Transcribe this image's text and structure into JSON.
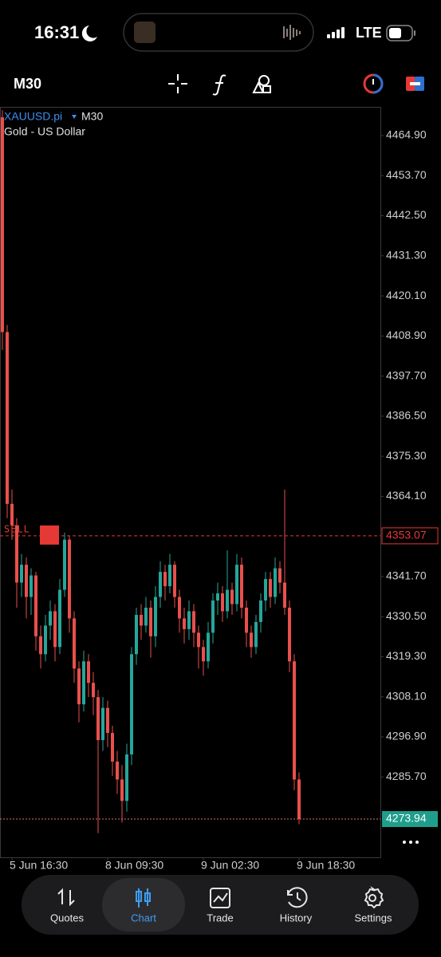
{
  "status_bar": {
    "time": "16:31",
    "network": "LTE"
  },
  "toolbar": {
    "timeframe": "M30"
  },
  "chart_data": {
    "type": "candlestick",
    "symbol": "XAUUSD.pi",
    "timeframe": "M30",
    "description": "Gold - US Dollar",
    "x": [
      null,
      null,
      "5 Jun 16:30",
      null,
      null,
      null,
      null,
      null,
      null,
      null,
      null,
      null,
      null,
      null,
      null,
      null,
      null,
      null,
      null,
      null,
      null,
      null,
      "8 Jun 09:30",
      null,
      null,
      null,
      null,
      null,
      null,
      null,
      null,
      null,
      null,
      null,
      null,
      null,
      null,
      null,
      null,
      null,
      null,
      null,
      "9 Jun 02:30",
      null,
      null,
      null,
      null,
      null,
      null,
      null,
      null,
      null,
      null,
      null,
      null,
      null,
      null,
      null,
      null,
      null,
      null,
      null,
      "9 Jun 18:30"
    ],
    "open": [
      4470,
      4410,
      4362,
      4356,
      4340,
      4345,
      4336,
      4342,
      4325,
      4320,
      4328,
      4332,
      4322,
      4338,
      4352,
      4330,
      4316,
      4306,
      4318,
      4312,
      4308,
      4296,
      4305,
      4298,
      4290,
      4285,
      4279,
      4292,
      4320,
      4331,
      4328,
      4333,
      4325,
      4336,
      4343,
      4339,
      4345,
      4336,
      4330,
      4327,
      4332,
      4326,
      4322,
      4318,
      4326,
      4335,
      4337,
      4332,
      4338,
      4334,
      4345,
      4333,
      4326,
      4322,
      4329,
      4335,
      4341,
      4336,
      4344,
      4340,
      4333,
      4318,
      4285
    ],
    "high": [
      4472,
      4412,
      4366,
      4358,
      4348,
      4347,
      4344,
      4343,
      4328,
      4331,
      4335,
      4334,
      4341,
      4354,
      4353,
      4332,
      4318,
      4321,
      4320,
      4315,
      4310,
      4308,
      4307,
      4300,
      4293,
      4289,
      4295,
      4322,
      4333,
      4334,
      4336,
      4335,
      4339,
      4346,
      4345,
      4348,
      4346,
      4338,
      4333,
      4335,
      4334,
      4328,
      4324,
      4329,
      4337,
      4340,
      4339,
      4349,
      4340,
      4348,
      4347,
      4335,
      4328,
      4331,
      4337,
      4343,
      4343,
      4347,
      4346,
      4366,
      4335,
      4320,
      4287
    ],
    "low": [
      4405,
      4358,
      4352,
      4333,
      4336,
      4330,
      4331,
      4321,
      4316,
      4318,
      4324,
      4318,
      4320,
      4336,
      4326,
      4312,
      4301,
      4304,
      4308,
      4303,
      4270,
      4293,
      4294,
      4286,
      4281,
      4273,
      4276,
      4289,
      4317,
      4324,
      4326,
      4319,
      4322,
      4333,
      4335,
      4337,
      4333,
      4326,
      4323,
      4324,
      4322,
      4316,
      4314,
      4316,
      4323,
      4331,
      4329,
      4330,
      4331,
      4332,
      4330,
      4322,
      4319,
      4320,
      4326,
      4332,
      4333,
      4334,
      4337,
      4331,
      4315,
      4282,
      4272.5
    ],
    "close": [
      4410,
      4362,
      4356,
      4340,
      4345,
      4336,
      4342,
      4325,
      4320,
      4328,
      4332,
      4322,
      4338,
      4352,
      4330,
      4316,
      4306,
      4318,
      4312,
      4308,
      4296,
      4305,
      4298,
      4290,
      4285,
      4279,
      4292,
      4320,
      4331,
      4328,
      4333,
      4325,
      4336,
      4343,
      4339,
      4345,
      4336,
      4330,
      4327,
      4332,
      4326,
      4322,
      4318,
      4326,
      4335,
      4337,
      4332,
      4338,
      4334,
      4345,
      4333,
      4326,
      4322,
      4329,
      4335,
      4341,
      4336,
      4344,
      4340,
      4333,
      4318,
      4285,
      4273.94
    ],
    "ylim": [
      4263.25,
      4472.7
    ],
    "yticks": [
      {
        "value": 4464.9,
        "label": "4464.90"
      },
      {
        "value": 4453.7,
        "label": "4453.70"
      },
      {
        "value": 4442.5,
        "label": "4442.50"
      },
      {
        "value": 4431.3,
        "label": "4431.30"
      },
      {
        "value": 4420.1,
        "label": "4420.10"
      },
      {
        "value": 4408.9,
        "label": "4408.90"
      },
      {
        "value": 4397.7,
        "label": "4397.70"
      },
      {
        "value": 4386.5,
        "label": "4386.50"
      },
      {
        "value": 4375.3,
        "label": "4375.30"
      },
      {
        "value": 4364.1,
        "label": "4364.10"
      },
      {
        "value": 4341.7,
        "label": "4341.70"
      },
      {
        "value": 4330.5,
        "label": "4330.50"
      },
      {
        "value": 4319.3,
        "label": "4319.30"
      },
      {
        "value": 4308.1,
        "label": "4308.10"
      },
      {
        "value": 4296.9,
        "label": "4296.90"
      },
      {
        "value": 4285.7,
        "label": "4285.70"
      }
    ],
    "up_color": "#26a69a",
    "down_color": "#e8504d",
    "order": {
      "label": "SELL",
      "price": 4353.07,
      "color": "#e53935"
    },
    "last_price": 4273.94,
    "last_price_color": "#1f9e8c"
  },
  "tab_bar": {
    "tabs": [
      "Quotes",
      "Chart",
      "Trade",
      "History",
      "Settings"
    ],
    "active": 1
  }
}
